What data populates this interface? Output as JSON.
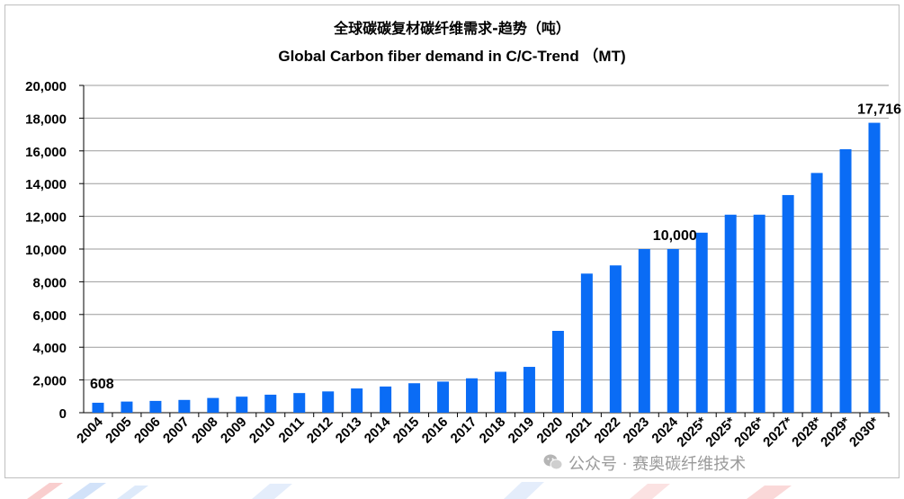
{
  "titles": {
    "cn": "全球碳碳复材碳纤维需求-趋势（吨）",
    "en": "Global Carbon fiber demand in C/C-Trend （MT)"
  },
  "watermark": "公众号 · 赛奥碳纤维技术",
  "chart_data": {
    "type": "bar",
    "title": "Global Carbon fiber demand in C/C-Trend （MT)",
    "xlabel": "",
    "ylabel": "",
    "ylim": [
      0,
      20000
    ],
    "yticks": [
      "0",
      "2,000",
      "4,000",
      "6,000",
      "8,000",
      "10,000",
      "12,000",
      "14,000",
      "16,000",
      "18,000",
      "20,000"
    ],
    "ytick_values": [
      0,
      2000,
      4000,
      6000,
      8000,
      10000,
      12000,
      14000,
      16000,
      18000,
      20000
    ],
    "categories": [
      "2004",
      "2005",
      "2006",
      "2007",
      "2008",
      "2009",
      "2010",
      "2011",
      "2012",
      "2013",
      "2014",
      "2015",
      "2016",
      "2017",
      "2018",
      "2019",
      "2020",
      "2021",
      "2022",
      "2023",
      "2024",
      "2025*",
      "2025*",
      "2026*",
      "2027*",
      "2028*",
      "2029*",
      "2030*"
    ],
    "values": [
      608,
      680,
      720,
      780,
      900,
      980,
      1100,
      1200,
      1300,
      1480,
      1600,
      1800,
      1900,
      2100,
      2500,
      2800,
      5000,
      8500,
      9000,
      10000,
      10000,
      11000,
      12100,
      12100,
      13300,
      14650,
      16100,
      17716
    ],
    "data_labels": [
      {
        "index": 0,
        "text": "608"
      },
      {
        "index": 20,
        "text": "10,000"
      },
      {
        "index": 27,
        "text": "17,716"
      }
    ],
    "bar_color": "#0a6cf5",
    "grid": true,
    "legend": "none"
  }
}
